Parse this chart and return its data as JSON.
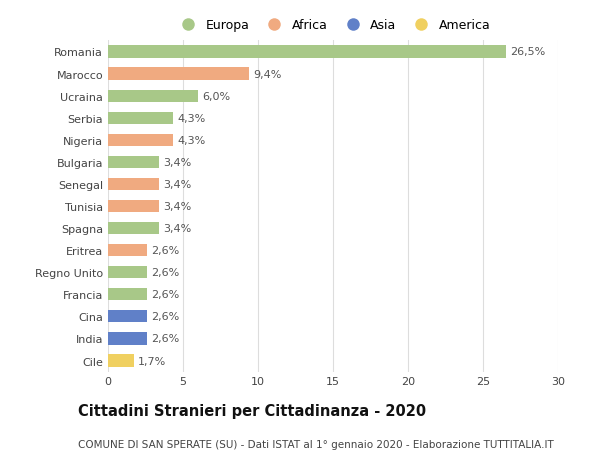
{
  "countries": [
    "Romania",
    "Marocco",
    "Ucraina",
    "Serbia",
    "Nigeria",
    "Bulgaria",
    "Senegal",
    "Tunisia",
    "Spagna",
    "Eritrea",
    "Regno Unito",
    "Francia",
    "Cina",
    "India",
    "Cile"
  ],
  "values": [
    26.5,
    9.4,
    6.0,
    4.3,
    4.3,
    3.4,
    3.4,
    3.4,
    3.4,
    2.6,
    2.6,
    2.6,
    2.6,
    2.6,
    1.7
  ],
  "labels": [
    "26,5%",
    "9,4%",
    "6,0%",
    "4,3%",
    "4,3%",
    "3,4%",
    "3,4%",
    "3,4%",
    "3,4%",
    "2,6%",
    "2,6%",
    "2,6%",
    "2,6%",
    "2,6%",
    "1,7%"
  ],
  "continents": [
    "Europa",
    "Africa",
    "Europa",
    "Europa",
    "Africa",
    "Europa",
    "Africa",
    "Africa",
    "Europa",
    "Africa",
    "Europa",
    "Europa",
    "Asia",
    "Asia",
    "America"
  ],
  "continent_colors": {
    "Europa": "#a8c888",
    "Africa": "#f0aa80",
    "Asia": "#6080c8",
    "America": "#f0d060"
  },
  "legend_order": [
    "Europa",
    "Africa",
    "Asia",
    "America"
  ],
  "title": "Cittadini Stranieri per Cittadinanza - 2020",
  "subtitle": "COMUNE DI SAN SPERATE (SU) - Dati ISTAT al 1° gennaio 2020 - Elaborazione TUTTITALIA.IT",
  "xlim": [
    0,
    30
  ],
  "xticks": [
    0,
    5,
    10,
    15,
    20,
    25,
    30
  ],
  "background_color": "#ffffff",
  "bar_height": 0.55,
  "grid_color": "#dddddd",
  "label_fontsize": 8,
  "tick_fontsize": 8,
  "title_fontsize": 10.5,
  "subtitle_fontsize": 7.5
}
